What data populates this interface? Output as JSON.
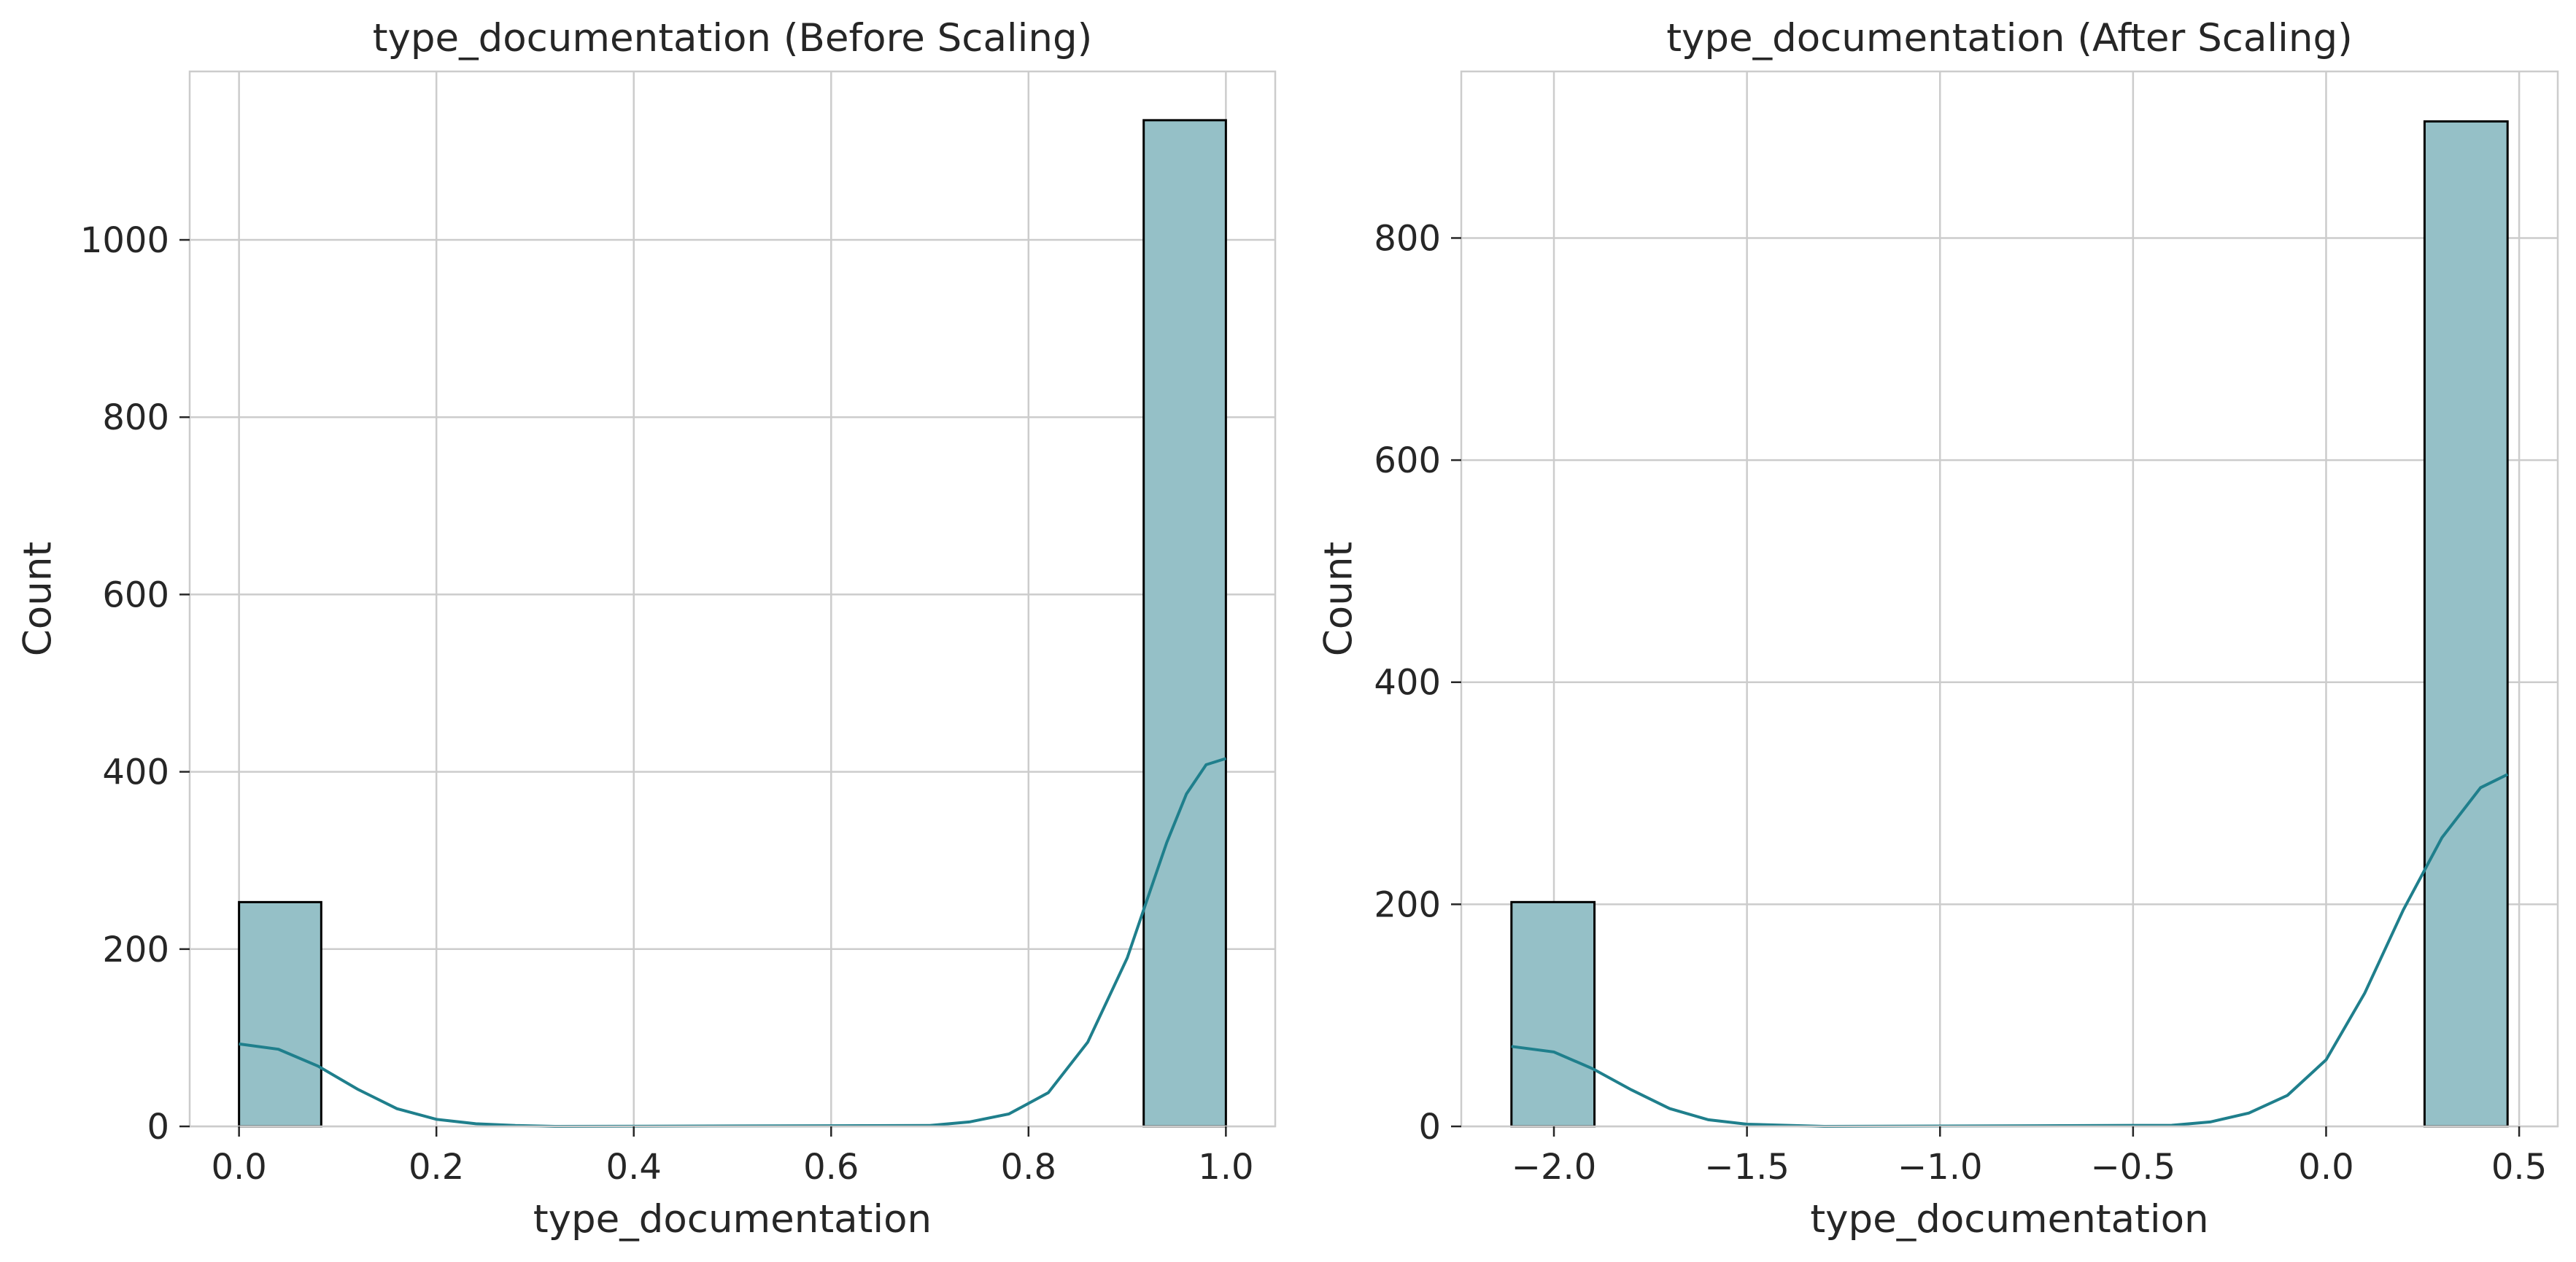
{
  "chart_data": [
    {
      "type": "bar",
      "subtype": "histogram-with-kde",
      "title": "type_documentation (Before Scaling)",
      "xlabel": "type_documentation",
      "ylabel": "Count",
      "xlim": [
        -0.05,
        1.05
      ],
      "ylim": [
        0,
        1190
      ],
      "xticks": [
        0.0,
        0.2,
        0.4,
        0.6,
        0.8,
        1.0
      ],
      "xtick_labels": [
        "0.0",
        "0.2",
        "0.4",
        "0.6",
        "0.8",
        "1.0"
      ],
      "yticks": [
        0,
        200,
        400,
        600,
        800,
        1000
      ],
      "ytick_labels": [
        "0",
        "200",
        "400",
        "600",
        "800",
        "1000"
      ],
      "bins": [
        {
          "x0": 0.0,
          "x1": 0.0833,
          "count": 253
        },
        {
          "x0": 0.9167,
          "x1": 1.0,
          "count": 1135
        }
      ],
      "kde": {
        "x": [
          0.0,
          0.04,
          0.08,
          0.12,
          0.16,
          0.2,
          0.24,
          0.28,
          0.32,
          0.7,
          0.74,
          0.78,
          0.82,
          0.86,
          0.9,
          0.92,
          0.94,
          0.96,
          0.98,
          1.0
        ],
        "y": [
          93,
          87,
          68,
          42,
          20,
          8,
          3,
          1,
          0,
          1,
          5,
          14,
          38,
          95,
          190,
          255,
          320,
          375,
          408,
          415
        ]
      },
      "grid": true,
      "colors": {
        "bar": "#95c0c7",
        "kde": "#1f7f8c"
      }
    },
    {
      "type": "bar",
      "subtype": "histogram-with-kde",
      "title": "type_documentation (After Scaling)",
      "xlabel": "type_documentation",
      "ylabel": "Count",
      "xlim": [
        -2.24,
        0.6
      ],
      "ylim": [
        0,
        950
      ],
      "xticks": [
        -2.0,
        -1.5,
        -1.0,
        -0.5,
        0.0,
        0.5
      ],
      "xtick_labels": [
        "−2.0",
        "−1.5",
        "−1.0",
        "−0.5",
        "0.0",
        "0.5"
      ],
      "yticks": [
        0,
        200,
        400,
        600,
        800
      ],
      "ytick_labels": [
        "0",
        "200",
        "400",
        "600",
        "800"
      ],
      "bins": [
        {
          "x0": -2.11,
          "x1": -1.895,
          "count": 202
        },
        {
          "x0": 0.255,
          "x1": 0.47,
          "count": 905
        }
      ],
      "kde": {
        "x": [
          -2.11,
          -2.0,
          -1.9,
          -1.8,
          -1.7,
          -1.6,
          -1.5,
          -1.4,
          -1.3,
          -0.4,
          -0.3,
          -0.2,
          -0.1,
          0.0,
          0.1,
          0.2,
          0.3,
          0.4,
          0.47
        ],
        "y": [
          72,
          67,
          52,
          33,
          16,
          6,
          2,
          1,
          0,
          1,
          4,
          12,
          28,
          60,
          120,
          195,
          260,
          305,
          317
        ]
      },
      "grid": true,
      "colors": {
        "bar": "#95c0c7",
        "kde": "#1f7f8c"
      }
    }
  ]
}
